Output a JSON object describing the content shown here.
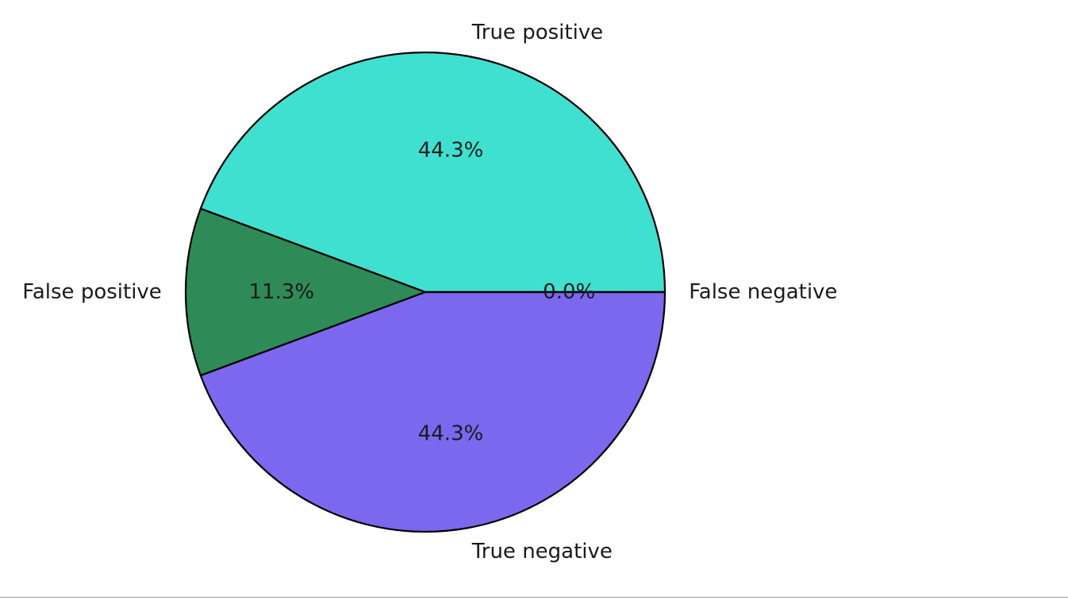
{
  "chart_data": {
    "type": "pie",
    "slices": [
      {
        "label": "True positive",
        "value": 44.3,
        "pct_label": "44.3%",
        "color": "#40e0d0"
      },
      {
        "label": "False positive",
        "value": 11.3,
        "pct_label": "11.3%",
        "color": "#2e8b57"
      },
      {
        "label": "True negative",
        "value": 44.3,
        "pct_label": "44.3%",
        "color": "#7b68ee"
      },
      {
        "label": "False negative",
        "value": 0.0,
        "pct_label": "0.0%",
        "color": "#ff7f0e"
      }
    ],
    "start_angle_deg": 0,
    "direction": "counterclockwise",
    "edge_color": "#000000"
  }
}
